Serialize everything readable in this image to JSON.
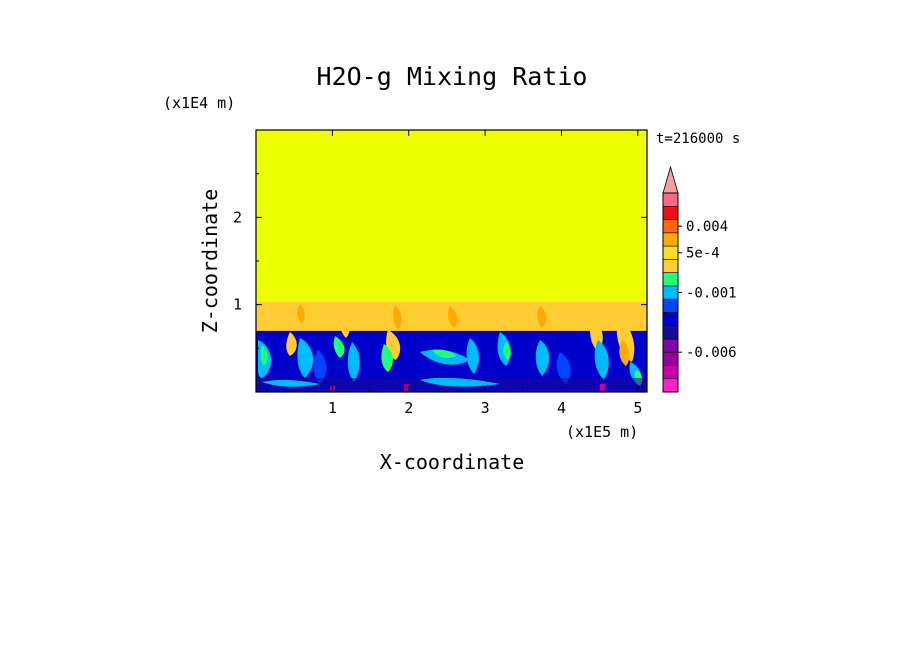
{
  "chart_data": {
    "type": "heatmap",
    "title": "H2O-g Mixing Ratio",
    "xlabel": "X-coordinate",
    "ylabel": "Z-coordinate",
    "x_unit": "(x1E5 m)",
    "y_unit": "(x1E4 m)",
    "time_label": "t=216000 s",
    "xlim": [
      0,
      5.12
    ],
    "ylim": [
      0,
      3.0
    ],
    "x_ticks": [
      {
        "value": 1,
        "label": "1"
      },
      {
        "value": 2,
        "label": "2"
      },
      {
        "value": 3,
        "label": "3"
      },
      {
        "value": 4,
        "label": "4"
      },
      {
        "value": 5,
        "label": "5"
      }
    ],
    "y_ticks": [
      {
        "value": 1,
        "label": "1"
      },
      {
        "value": 2,
        "label": "2"
      }
    ],
    "color_levels": [
      {
        "color": "#ff22cc"
      },
      {
        "color": "#cc00aa"
      },
      {
        "color": "#990099"
      },
      {
        "color": "#7a0aa8"
      },
      {
        "color": "#1a0a9a"
      },
      {
        "color": "#0000cc"
      },
      {
        "color": "#0044ff"
      },
      {
        "color": "#00bbff"
      },
      {
        "color": "#22ff77"
      },
      {
        "color": "#ffcc33"
      },
      {
        "color": "#ffdd22"
      },
      {
        "color": "#ffaa00"
      },
      {
        "color": "#ff6600"
      },
      {
        "color": "#ee1111"
      },
      {
        "color": "#ff6688"
      }
    ],
    "colorbar_over_color": "#f4a0a0",
    "colorbar_labels": [
      {
        "label": "0.004",
        "level": 12.5
      },
      {
        "label": "5e-4",
        "level": 10.5
      },
      {
        "label": "-0.001",
        "level": 7.5
      },
      {
        "label": "-0.006",
        "level": 3.0
      }
    ],
    "field_regions": {
      "upper_color": "#eeff00",
      "upper_range": [
        1.03,
        3.0
      ],
      "middle_color": "#ffcc33",
      "middle_range": [
        0.7,
        1.03
      ],
      "lower_color": "#0000cc",
      "lower_range": [
        0,
        0.7
      ]
    }
  }
}
